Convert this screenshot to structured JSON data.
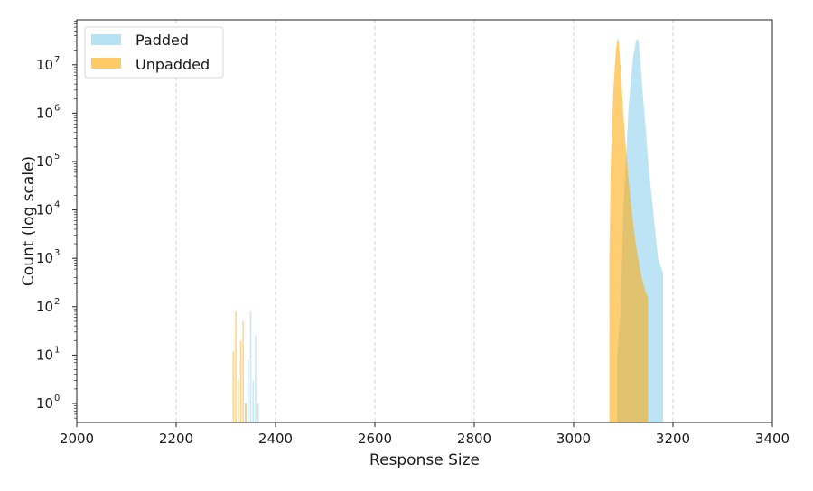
{
  "chart_data": {
    "type": "bar",
    "subtype": "overlapping-histogram",
    "title": "",
    "xlabel": "Response Size",
    "ylabel": "Count (log scale)",
    "xlim": [
      2000,
      3400
    ],
    "ylim": [
      0.4,
      80000000
    ],
    "yscale": "log",
    "xticks": [
      2000,
      2200,
      2400,
      2600,
      2800,
      3000,
      3200,
      3400
    ],
    "xtick_labels": [
      "2000",
      "2200",
      "2400",
      "2600",
      "2800",
      "3000",
      "3200",
      "3400"
    ],
    "yticks_exp": [
      0,
      1,
      2,
      3,
      4,
      5,
      6,
      7
    ],
    "ytick_base": "10",
    "grid": {
      "x": true,
      "y": false,
      "style": "dashed"
    },
    "legend": {
      "position": "upper left",
      "entries": [
        "Padded",
        "Unpadded"
      ]
    },
    "series": [
      {
        "name": "Padded",
        "color": "#87CEEB",
        "alpha": 0.55,
        "main_mode": {
          "x": [
            3088,
            3095,
            3100,
            3105,
            3110,
            3115,
            3120,
            3125,
            3128,
            3131,
            3135,
            3140,
            3145,
            3150,
            3155,
            3160,
            3165,
            3170,
            3175,
            3180
          ],
          "y": [
            10,
            100,
            10000,
            100000,
            1000000,
            5000000,
            15000000,
            30000000,
            35000000,
            30000000,
            10000000,
            2000000,
            500000,
            100000,
            30000,
            10000,
            3000,
            1000,
            700,
            500
          ]
        },
        "minor_mode": {
          "x": [
            2340,
            2345,
            2350,
            2355,
            2360,
            2365
          ],
          "y": [
            1,
            8,
            80,
            3,
            25,
            1
          ]
        }
      },
      {
        "name": "Unpadded",
        "color": "#FFA500",
        "alpha": 0.55,
        "main_mode": {
          "x": [
            3072,
            3075,
            3080,
            3085,
            3088,
            3091,
            3095,
            3100,
            3105,
            3110,
            3115,
            3120,
            3125,
            3130,
            3135,
            3140,
            3145,
            3150
          ],
          "y": [
            1000,
            100000,
            3000000,
            20000000,
            35000000,
            30000000,
            8000000,
            1000000,
            200000,
            50000,
            15000,
            5000,
            2000,
            1000,
            500,
            300,
            200,
            150
          ]
        },
        "minor_mode": {
          "x": [
            2315,
            2320,
            2325,
            2330,
            2335,
            2340
          ],
          "y": [
            12,
            80,
            3,
            20,
            50,
            1
          ]
        }
      }
    ]
  }
}
